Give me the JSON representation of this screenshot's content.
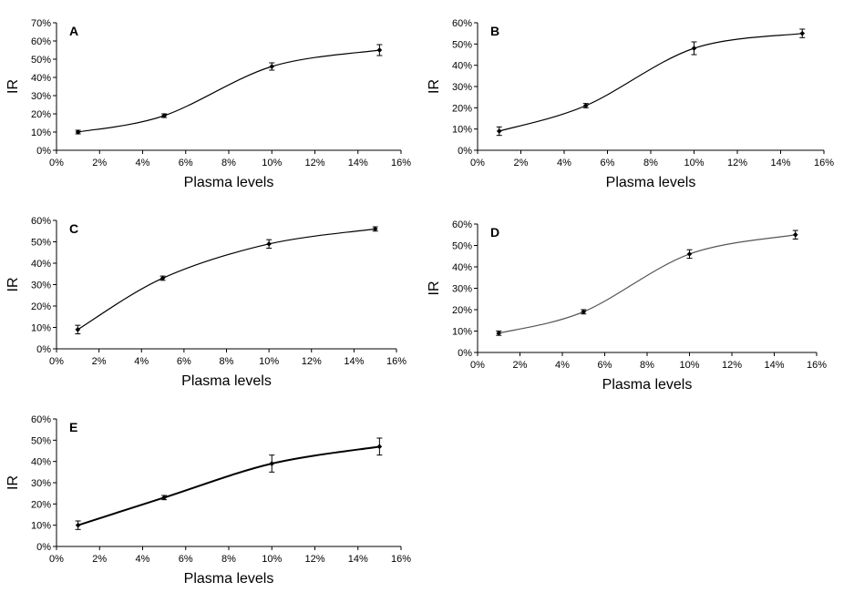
{
  "chart_data": [
    {
      "type": "line",
      "panel": "A",
      "x": [
        1,
        5,
        10,
        15
      ],
      "values": [
        10,
        19,
        46,
        55
      ],
      "errors": [
        1,
        1,
        2,
        3
      ],
      "xlabel": "Plasma levels",
      "ylabel": "IR",
      "xlim": [
        0,
        16
      ],
      "ylim": [
        0,
        70
      ],
      "xticks": [
        "0%",
        "2%",
        "4%",
        "6%",
        "8%",
        "10%",
        "12%",
        "14%",
        "16%"
      ],
      "yticks": [
        "0%",
        "10%",
        "20%",
        "30%",
        "40%",
        "50%",
        "60%",
        "70%"
      ],
      "grid": false,
      "line_color": "#000000"
    },
    {
      "type": "line",
      "panel": "B",
      "x": [
        1,
        5,
        10,
        15
      ],
      "values": [
        9,
        21,
        48,
        55
      ],
      "errors": [
        2,
        1,
        3,
        2
      ],
      "xlabel": "Plasma levels",
      "ylabel": "IR",
      "xlim": [
        0,
        16
      ],
      "ylim": [
        0,
        60
      ],
      "xticks": [
        "0%",
        "2%",
        "4%",
        "6%",
        "8%",
        "10%",
        "12%",
        "14%",
        "16%"
      ],
      "yticks": [
        "0%",
        "10%",
        "20%",
        "30%",
        "40%",
        "50%",
        "60%"
      ],
      "grid": false,
      "line_color": "#000000"
    },
    {
      "type": "line",
      "panel": "C",
      "x": [
        1,
        5,
        10,
        15
      ],
      "values": [
        9,
        33,
        49,
        56
      ],
      "errors": [
        2,
        1,
        2,
        1
      ],
      "xlabel": "Plasma levels",
      "ylabel": "IR",
      "xlim": [
        0,
        16
      ],
      "ylim": [
        0,
        60
      ],
      "xticks": [
        "0%",
        "2%",
        "4%",
        "6%",
        "8%",
        "10%",
        "12%",
        "14%",
        "16%"
      ],
      "yticks": [
        "0%",
        "10%",
        "20%",
        "30%",
        "40%",
        "50%",
        "60%"
      ],
      "grid": false,
      "line_color": "#000000"
    },
    {
      "type": "line",
      "panel": "D",
      "x": [
        1,
        5,
        10,
        15
      ],
      "values": [
        9,
        19,
        46,
        55
      ],
      "errors": [
        1,
        1,
        2,
        2
      ],
      "xlabel": "Plasma levels",
      "ylabel": "IR",
      "xlim": [
        0,
        16
      ],
      "ylim": [
        0,
        60
      ],
      "xticks": [
        "0%",
        "2%",
        "4%",
        "6%",
        "8%",
        "10%",
        "12%",
        "14%",
        "16%"
      ],
      "yticks": [
        "0%",
        "10%",
        "20%",
        "30%",
        "40%",
        "50%",
        "60%"
      ],
      "grid": false,
      "line_color": "#555555"
    },
    {
      "type": "line",
      "panel": "E",
      "x": [
        1,
        5,
        10,
        15
      ],
      "values": [
        10,
        23,
        39,
        47
      ],
      "errors": [
        2,
        1,
        4,
        4
      ],
      "xlabel": "Plasma levels",
      "ylabel": "IR",
      "xlim": [
        0,
        16
      ],
      "ylim": [
        0,
        60
      ],
      "xticks": [
        "0%",
        "2%",
        "4%",
        "6%",
        "8%",
        "10%",
        "12%",
        "14%",
        "16%"
      ],
      "yticks": [
        "0%",
        "10%",
        "20%",
        "30%",
        "40%",
        "50%",
        "60%"
      ],
      "grid": false,
      "line_color": "#000000"
    }
  ]
}
